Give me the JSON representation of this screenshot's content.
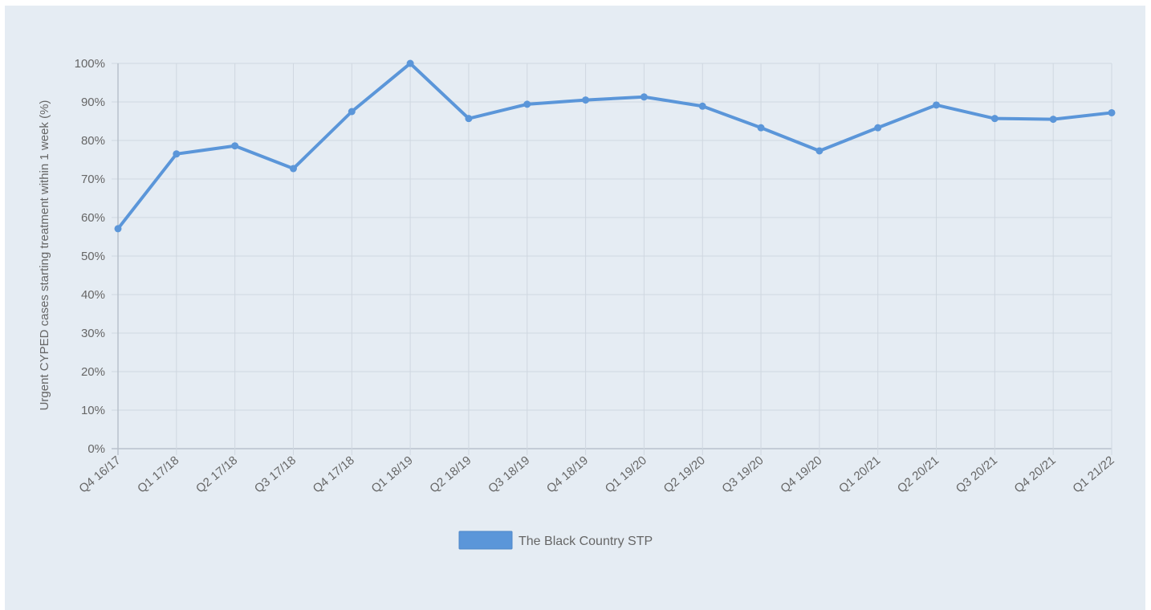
{
  "chart_data": {
    "type": "line",
    "ylabel": "Urgent CYPED cases starting treatment within 1 week (%)",
    "xlabel": "",
    "ylim": [
      0,
      100
    ],
    "y_ticks": [
      "0%",
      "10%",
      "20%",
      "30%",
      "40%",
      "50%",
      "60%",
      "70%",
      "80%",
      "90%",
      "100%"
    ],
    "y_tick_values": [
      0,
      10,
      20,
      30,
      40,
      50,
      60,
      70,
      80,
      90,
      100
    ],
    "grid": true,
    "legend_position": "bottom",
    "categories": [
      "Q4 16/17",
      "Q1 17/18",
      "Q2 17/18",
      "Q3 17/18",
      "Q4 17/18",
      "Q1 18/19",
      "Q2 18/19",
      "Q3 18/19",
      "Q4 18/19",
      "Q1 19/20",
      "Q2 19/20",
      "Q3 19/20",
      "Q4 19/20",
      "Q1 20/21",
      "Q2 20/21",
      "Q3 20/21",
      "Q4 20/21",
      "Q1 21/22"
    ],
    "series": [
      {
        "name": "The Black Country STP",
        "color": "#5b96d9",
        "values": [
          57.1,
          76.5,
          78.6,
          72.7,
          87.5,
          100.0,
          85.7,
          89.4,
          90.5,
          91.3,
          88.9,
          83.3,
          77.3,
          83.3,
          89.2,
          85.7,
          85.5,
          87.2
        ]
      }
    ]
  }
}
